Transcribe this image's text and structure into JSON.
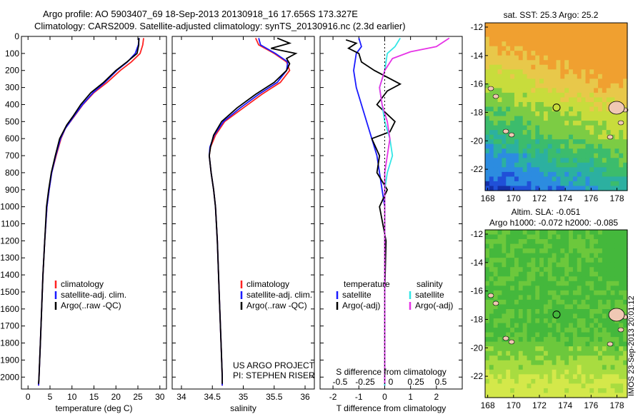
{
  "header": {
    "line1": "Argo profile: AO 5903407_69 18-Sep-2013 20130918_16 17.656S 173.327E",
    "line2": "Climatology: CARS2009. Satellite-adjusted climatology: synTS_20130916.nc (2.3d earlier)"
  },
  "colors": {
    "climatology": "#ff2222",
    "satellite": "#1a1aff",
    "argo": "#000000",
    "sal_satellite": "#33e6e6",
    "sal_argo": "#e633e6"
  },
  "chart_data": [
    {
      "type": "line",
      "id": "temperature",
      "xlabel": "temperature (deg C)",
      "xlim": [
        -1.5,
        31.5
      ],
      "ylim": [
        2070,
        0
      ],
      "xticks": [
        0,
        5,
        10,
        15,
        20,
        25,
        30
      ],
      "yticks": [
        0,
        100,
        200,
        300,
        400,
        500,
        600,
        700,
        800,
        900,
        1000,
        1100,
        1200,
        1300,
        1400,
        1500,
        1600,
        1700,
        1800,
        1900,
        2000
      ],
      "legend": [
        "climatology",
        "satellite-adj. clim.",
        "Argo(..raw -QC)"
      ],
      "series": [
        {
          "name": "climatology",
          "color": "#ff2222",
          "points": [
            [
              26.3,
              10
            ],
            [
              26.1,
              50
            ],
            [
              25.5,
              100
            ],
            [
              23.5,
              150
            ],
            [
              21.0,
              200
            ],
            [
              18.0,
              270
            ],
            [
              15.0,
              330
            ],
            [
              12.5,
              400
            ],
            [
              10.5,
              470
            ],
            [
              8.5,
              540
            ],
            [
              7.5,
              600
            ],
            [
              6.4,
              700
            ],
            [
              5.4,
              800
            ],
            [
              4.8,
              900
            ],
            [
              4.3,
              1000
            ],
            [
              3.8,
              1200
            ],
            [
              3.4,
              1400
            ],
            [
              3.1,
              1600
            ],
            [
              2.8,
              1800
            ],
            [
              2.5,
              2000
            ],
            [
              2.4,
              2050
            ]
          ]
        },
        {
          "name": "satellite-adj. clim.",
          "color": "#1a1aff",
          "points": [
            [
              25.3,
              10
            ],
            [
              25.1,
              50
            ],
            [
              24.4,
              100
            ],
            [
              22.6,
              150
            ],
            [
              20.2,
              200
            ],
            [
              17.5,
              270
            ],
            [
              14.8,
              330
            ],
            [
              12.4,
              400
            ],
            [
              10.4,
              470
            ],
            [
              8.5,
              540
            ],
            [
              7.4,
              600
            ],
            [
              6.3,
              700
            ],
            [
              5.4,
              800
            ],
            [
              4.8,
              900
            ],
            [
              4.3,
              1000
            ],
            [
              3.8,
              1200
            ],
            [
              3.4,
              1400
            ],
            [
              3.1,
              1600
            ],
            [
              2.8,
              1800
            ],
            [
              2.5,
              2000
            ],
            [
              2.4,
              2050
            ]
          ]
        },
        {
          "name": "Argo(..raw -QC)",
          "color": "#000000",
          "points": [
            [
              25.2,
              10
            ],
            [
              25.2,
              50
            ],
            [
              24.8,
              100
            ],
            [
              22.5,
              150
            ],
            [
              20.0,
              200
            ],
            [
              17.2,
              270
            ],
            [
              14.3,
              330
            ],
            [
              12.0,
              400
            ],
            [
              10.2,
              470
            ],
            [
              8.8,
              520
            ],
            [
              7.2,
              600
            ],
            [
              6.2,
              700
            ],
            [
              5.3,
              800
            ],
            [
              4.7,
              900
            ],
            [
              4.2,
              1000
            ],
            [
              3.8,
              1200
            ],
            [
              3.4,
              1400
            ],
            [
              3.1,
              1600
            ],
            [
              2.8,
              1800
            ],
            [
              2.5,
              2000
            ],
            [
              2.4,
              2040
            ]
          ]
        }
      ]
    },
    {
      "type": "line",
      "id": "salinity",
      "xlabel": "salinity",
      "xlim": [
        33.85,
        36.15
      ],
      "ylim": [
        2070,
        0
      ],
      "xticks": [
        34,
        34.5,
        35,
        35.5,
        36
      ],
      "legend": [
        "climatology",
        "satellite-adj. clim.",
        "Argo(..raw -QC)"
      ],
      "annotation": [
        "US ARGO PROJECT",
        "PI: STEPHEN RISER"
      ],
      "series": [
        {
          "name": "climatology",
          "color": "#ff2222",
          "points": [
            [
              35.2,
              10
            ],
            [
              35.25,
              50
            ],
            [
              35.5,
              100
            ],
            [
              35.7,
              150
            ],
            [
              35.75,
              200
            ],
            [
              35.6,
              270
            ],
            [
              35.3,
              340
            ],
            [
              35.0,
              420
            ],
            [
              34.7,
              500
            ],
            [
              34.55,
              580
            ],
            [
              34.47,
              650
            ],
            [
              34.45,
              700
            ],
            [
              34.48,
              800
            ],
            [
              34.52,
              900
            ],
            [
              34.55,
              1000
            ],
            [
              34.58,
              1200
            ],
            [
              34.6,
              1400
            ],
            [
              34.62,
              1600
            ],
            [
              34.64,
              1800
            ],
            [
              34.66,
              2000
            ],
            [
              34.66,
              2050
            ]
          ]
        },
        {
          "name": "satellite-adj. clim.",
          "color": "#1a1aff",
          "points": [
            [
              35.25,
              10
            ],
            [
              35.28,
              50
            ],
            [
              35.52,
              100
            ],
            [
              35.72,
              150
            ],
            [
              35.7,
              200
            ],
            [
              35.55,
              270
            ],
            [
              35.25,
              340
            ],
            [
              34.95,
              420
            ],
            [
              34.68,
              500
            ],
            [
              34.53,
              580
            ],
            [
              34.46,
              650
            ],
            [
              34.45,
              700
            ],
            [
              34.48,
              800
            ],
            [
              34.52,
              900
            ],
            [
              34.55,
              1000
            ],
            [
              34.58,
              1200
            ],
            [
              34.6,
              1400
            ],
            [
              34.62,
              1600
            ],
            [
              34.64,
              1800
            ],
            [
              34.66,
              2000
            ],
            [
              34.66,
              2050
            ]
          ]
        },
        {
          "name": "Argo(..raw -QC)",
          "color": "#000000",
          "points": [
            [
              35.55,
              10
            ],
            [
              35.75,
              40
            ],
            [
              35.45,
              70
            ],
            [
              35.85,
              100
            ],
            [
              35.7,
              130
            ],
            [
              35.75,
              160
            ],
            [
              35.7,
              200
            ],
            [
              35.5,
              270
            ],
            [
              35.2,
              340
            ],
            [
              34.9,
              420
            ],
            [
              34.65,
              500
            ],
            [
              34.52,
              580
            ],
            [
              34.47,
              650
            ],
            [
              34.45,
              700
            ],
            [
              34.48,
              800
            ],
            [
              34.52,
              900
            ],
            [
              34.55,
              1000
            ],
            [
              34.58,
              1200
            ],
            [
              34.6,
              1400
            ],
            [
              34.62,
              1600
            ],
            [
              34.64,
              1800
            ],
            [
              34.66,
              2000
            ],
            [
              34.66,
              2040
            ]
          ]
        }
      ]
    },
    {
      "type": "line",
      "id": "differences",
      "xlabel": "T difference from climatology",
      "xlabel_top": "S difference from climatology",
      "xlim": [
        -2.5,
        3.0
      ],
      "xticks": [
        -2,
        -1,
        0,
        1,
        2
      ],
      "xticks_s": [
        -0.5,
        -0.25,
        0,
        0.25,
        0.5
      ],
      "ylim": [
        2070,
        0
      ],
      "legend_t": [
        "temperature",
        "satellite",
        "Argo(-adj)"
      ],
      "legend_s": [
        "salinity",
        "satellite",
        "Argo(-adj)"
      ],
      "series": [
        {
          "name": "satellite",
          "group": "temperature",
          "color": "#1a1aff",
          "points": [
            [
              -1.0,
              10
            ],
            [
              -0.9,
              60
            ],
            [
              -1.1,
              100
            ],
            [
              -1.2,
              200
            ],
            [
              -1.1,
              300
            ],
            [
              -0.9,
              400
            ],
            [
              -0.7,
              500
            ],
            [
              -0.5,
              600
            ],
            [
              -0.3,
              700
            ],
            [
              -0.2,
              800
            ],
            [
              -0.1,
              900
            ],
            [
              0,
              1000
            ],
            [
              0,
              1200
            ],
            [
              0,
              1500
            ],
            [
              0,
              2000
            ],
            [
              0,
              2050
            ]
          ]
        },
        {
          "name": "Argo(-adj)",
          "group": "temperature",
          "color": "#000000",
          "points": [
            [
              -1.5,
              20
            ],
            [
              -1.1,
              40
            ],
            [
              -1.4,
              70
            ],
            [
              -1.0,
              100
            ],
            [
              -0.9,
              150
            ],
            [
              -0.4,
              200
            ],
            [
              0.6,
              280
            ],
            [
              0.1,
              320
            ],
            [
              -0.3,
              400
            ],
            [
              0.4,
              500
            ],
            [
              0.2,
              560
            ],
            [
              -0.5,
              600
            ],
            [
              -0.2,
              700
            ],
            [
              -0.3,
              800
            ],
            [
              0.1,
              900
            ],
            [
              -0.2,
              1000
            ],
            [
              0.05,
              1200
            ],
            [
              0,
              1500
            ],
            [
              0,
              2000
            ],
            [
              0,
              2040
            ]
          ]
        },
        {
          "name": "satellite",
          "group": "salinity",
          "color": "#33e6e6",
          "points": [
            [
              0.6,
              10
            ],
            [
              0.4,
              60
            ],
            [
              0.1,
              100
            ],
            [
              0.0,
              200
            ],
            [
              -0.2,
              300
            ],
            [
              -0.1,
              400
            ],
            [
              0.0,
              500
            ],
            [
              0.2,
              600
            ],
            [
              0.3,
              700
            ],
            [
              0.1,
              800
            ],
            [
              0.0,
              900
            ],
            [
              0.0,
              1000
            ],
            [
              0.0,
              1200
            ],
            [
              0,
              2000
            ],
            [
              0,
              2050
            ]
          ]
        },
        {
          "name": "Argo(-adj)",
          "group": "salinity",
          "color": "#e633e6",
          "points": [
            [
              2.5,
              10
            ],
            [
              2.0,
              60
            ],
            [
              1.0,
              90
            ],
            [
              0.3,
              130
            ],
            [
              0.0,
              200
            ],
            [
              -0.2,
              300
            ],
            [
              -0.1,
              400
            ],
            [
              0.1,
              500
            ],
            [
              0.2,
              600
            ],
            [
              0.1,
              700
            ],
            [
              0.0,
              800
            ],
            [
              0.0,
              1000
            ],
            [
              0,
              2000
            ],
            [
              0,
              2040
            ]
          ]
        }
      ]
    },
    {
      "type": "heatmap",
      "id": "sst_map",
      "title": "sat. SST: 25.3 Argo: 25.2",
      "xticks": [
        168,
        170,
        172,
        174,
        176,
        178
      ],
      "yticks": [
        -12,
        -14,
        -16,
        -18,
        -20,
        -22
      ],
      "xlim": [
        167.8,
        178.8
      ],
      "ylim": [
        -23.5,
        -11.7
      ],
      "marker": {
        "lon": 173.327,
        "lat": -17.656
      }
    },
    {
      "type": "heatmap",
      "id": "sla_map",
      "title": "Altim. SLA: -0.051",
      "subtitle": "Argo h1000: -0.072 h2000: -0.085",
      "xticks": [
        168,
        170,
        172,
        174,
        176,
        178
      ],
      "yticks": [
        -12,
        -14,
        -16,
        -18,
        -20,
        -22
      ],
      "xlim": [
        167.8,
        178.8
      ],
      "ylim": [
        -23.5,
        -11.7
      ],
      "marker": {
        "lon": 173.327,
        "lat": -17.656
      }
    }
  ],
  "stamp": "IMOS 23-Sep-2013 20:01:12"
}
